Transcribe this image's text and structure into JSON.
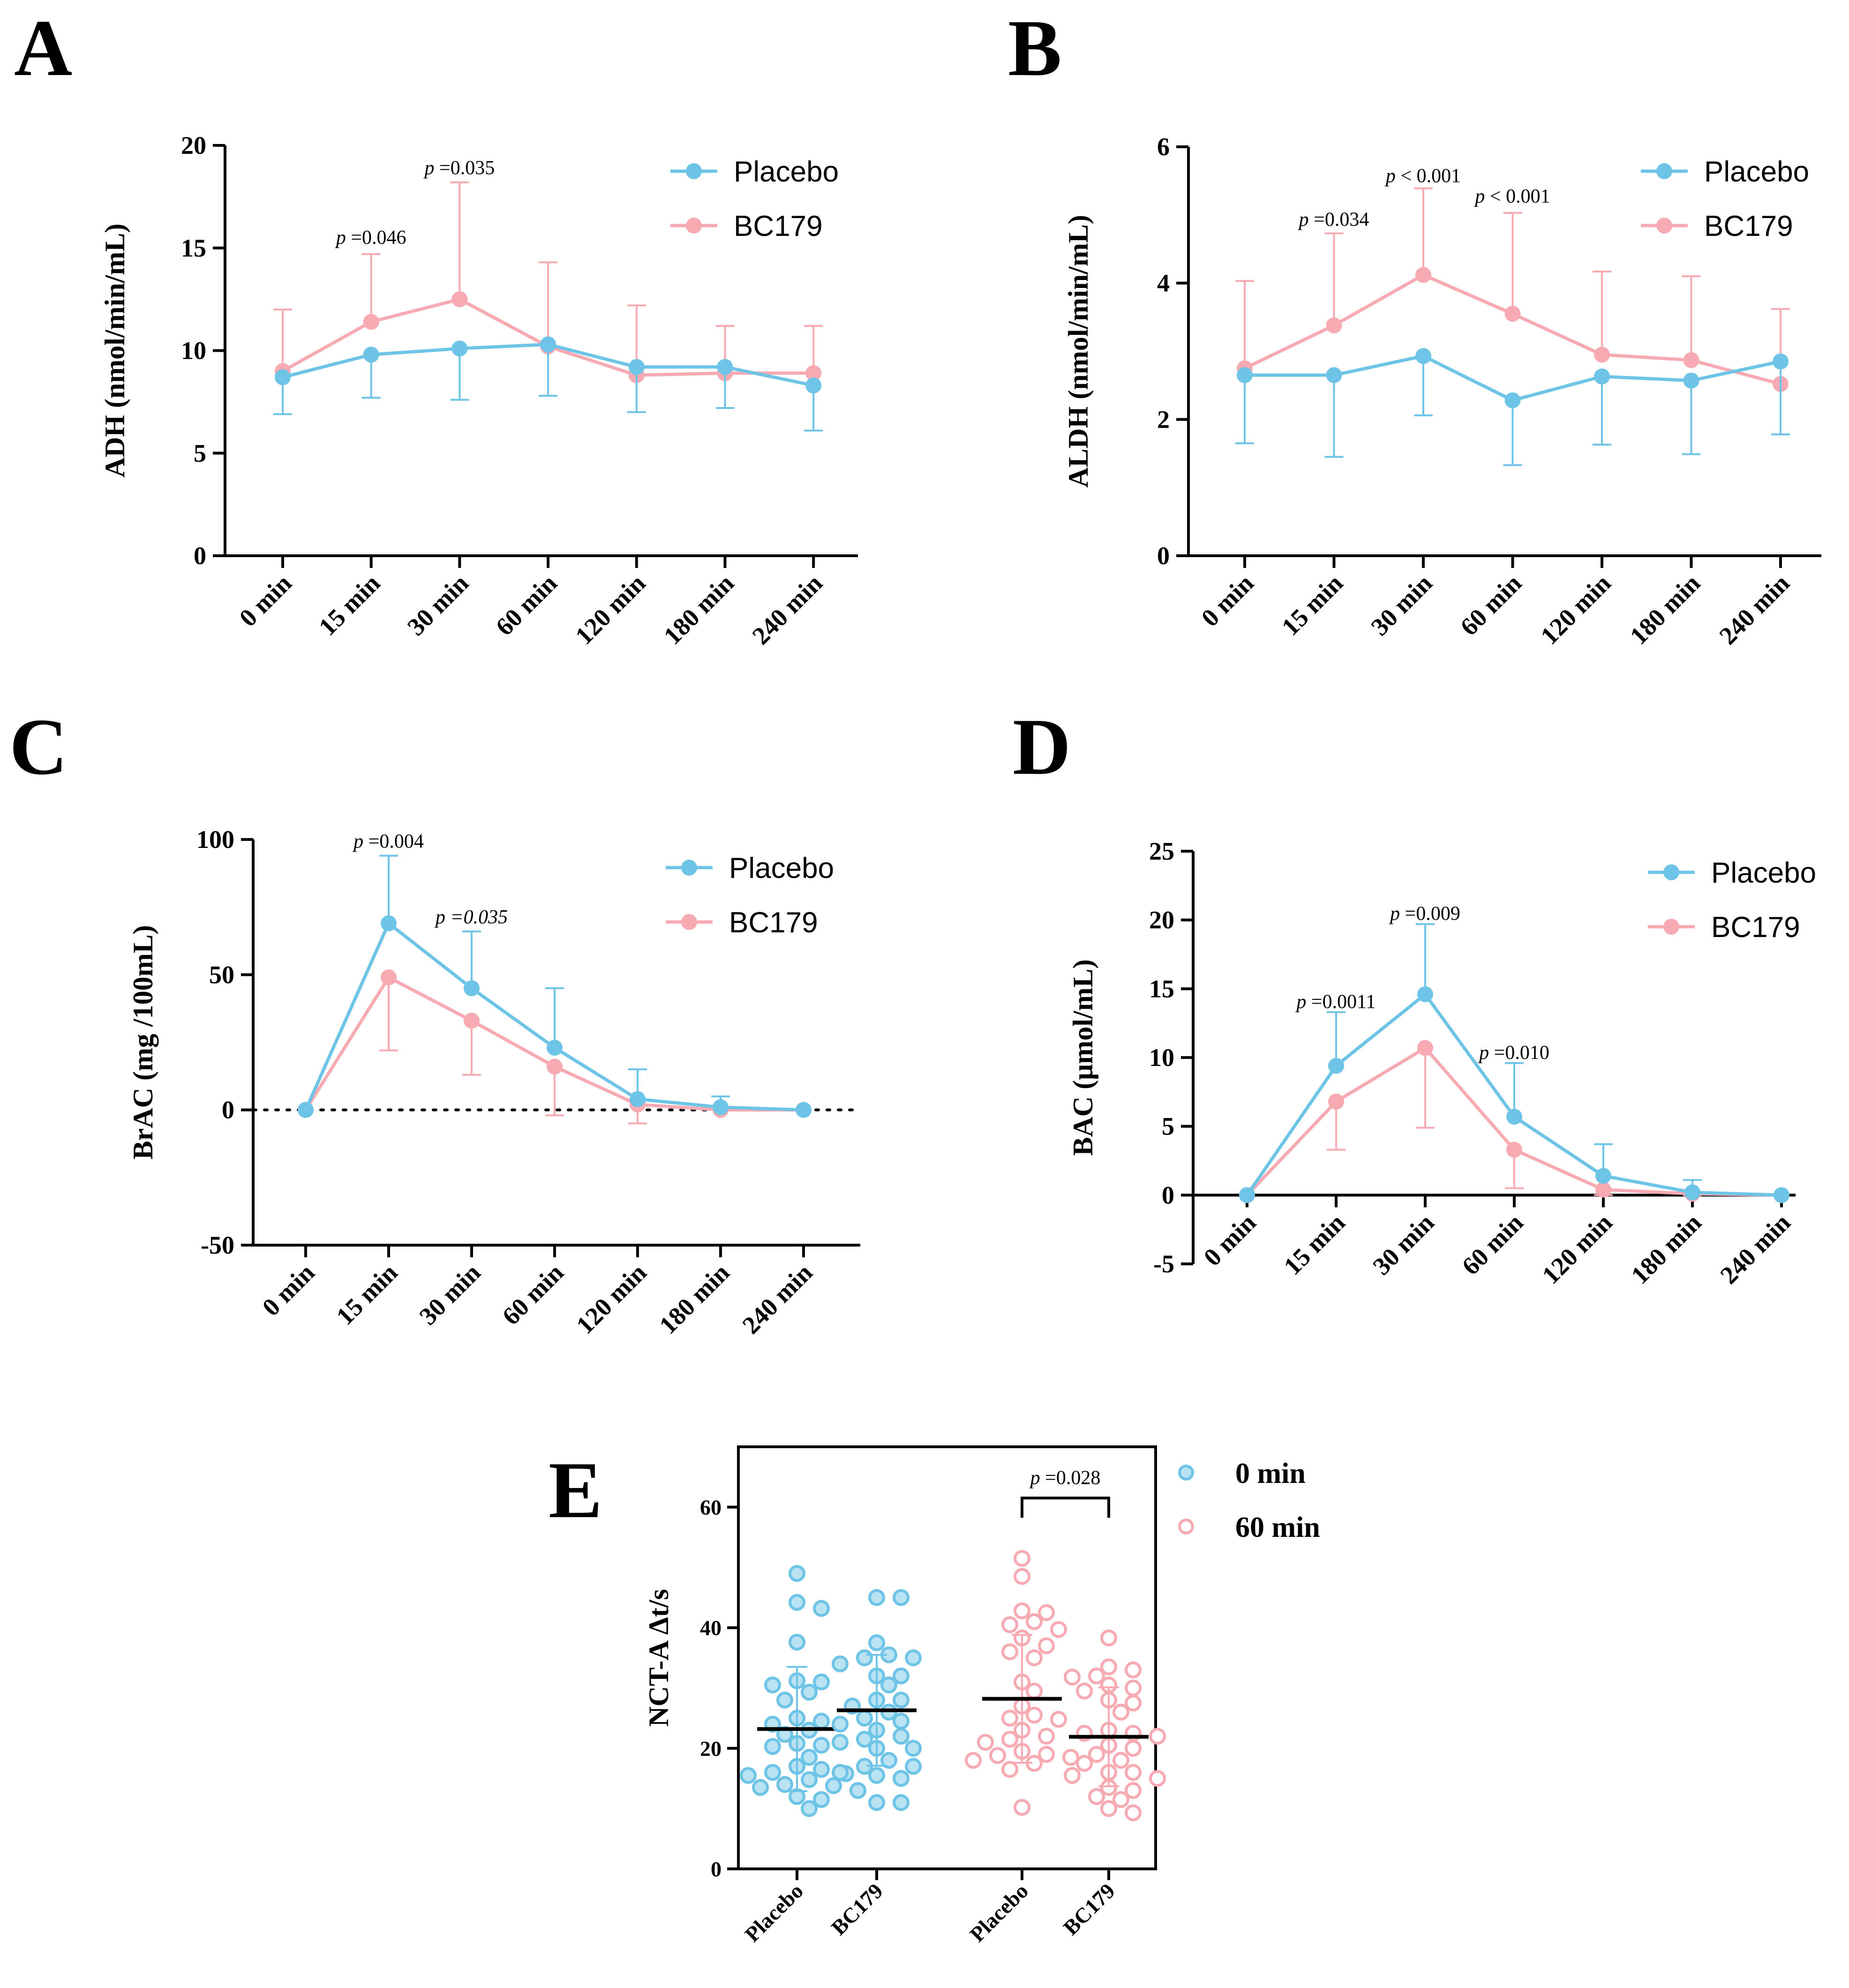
{
  "colors": {
    "placebo": "#6ec4e6",
    "bc179": "#f7aab1",
    "axis": "#000000"
  },
  "chart_data": [
    {
      "panel": "A",
      "type": "line",
      "ylabel": "ADH (nmol/min/mL)",
      "categories": [
        "0 min",
        "15 min",
        "30 min",
        "60 min",
        "120 min",
        "180 min",
        "240 min"
      ],
      "ylim": [
        0,
        20
      ],
      "yticks": [
        0,
        5,
        10,
        15,
        20
      ],
      "series": [
        {
          "name": "Placebo",
          "values": [
            8.7,
            9.8,
            10.1,
            10.3,
            9.2,
            9.2,
            8.3
          ],
          "err": [
            1.8,
            2.1,
            2.5,
            2.5,
            2.2,
            2.0,
            2.2
          ],
          "err_dir": "down"
        },
        {
          "name": "BC179",
          "values": [
            9.0,
            11.4,
            12.5,
            10.2,
            8.8,
            8.9,
            8.9
          ],
          "err": [
            3.0,
            3.3,
            5.7,
            4.1,
            3.4,
            2.3,
            2.3
          ],
          "err_dir": "up"
        }
      ],
      "annotations": [
        {
          "cat": 1,
          "y": 15.2,
          "p": "p",
          "text": "=0.046",
          "italic_value": false
        },
        {
          "cat": 2,
          "y": 18.6,
          "p": "p",
          "text": "=0.035",
          "italic_value": false
        }
      ],
      "legend": [
        "Placebo",
        "BC179"
      ]
    },
    {
      "panel": "B",
      "type": "line",
      "ylabel": "ALDH (nmol/min/mL)",
      "categories": [
        "0 min",
        "15 min",
        "30 min",
        "60 min",
        "120 min",
        "180 min",
        "240 min"
      ],
      "ylim": [
        0,
        6
      ],
      "yticks": [
        0,
        2,
        4,
        6
      ],
      "series": [
        {
          "name": "Placebo",
          "values": [
            2.65,
            2.65,
            2.93,
            2.28,
            2.63,
            2.57,
            2.85
          ],
          "err": [
            1.0,
            1.2,
            0.87,
            0.95,
            1.0,
            1.08,
            1.07
          ],
          "err_dir": "down"
        },
        {
          "name": "BC179",
          "values": [
            2.75,
            3.38,
            4.12,
            3.55,
            2.95,
            2.87,
            2.52
          ],
          "err": [
            1.28,
            1.35,
            1.27,
            1.48,
            1.22,
            1.23,
            1.1
          ],
          "err_dir": "up"
        }
      ],
      "annotations": [
        {
          "cat": 1,
          "y": 4.84,
          "p": "p",
          "text": "=0.034",
          "italic_value": false
        },
        {
          "cat": 2,
          "y": 5.48,
          "p": "p",
          "text": "< 0.001",
          "italic_value": false
        },
        {
          "cat": 3,
          "y": 5.18,
          "p": "p",
          "text": "< 0.001",
          "italic_value": false
        }
      ],
      "legend": [
        "Placebo",
        "BC179"
      ]
    },
    {
      "panel": "C",
      "type": "line",
      "ylabel": "BrAC (mg /100mL)",
      "categories": [
        "0 min",
        "15 min",
        "30 min",
        "60 min",
        "120 min",
        "180 min",
        "240 min"
      ],
      "ylim": [
        -50,
        100
      ],
      "yticks": [
        -50,
        0,
        50,
        100
      ],
      "zero_line": "dotted",
      "series": [
        {
          "name": "Placebo",
          "values": [
            0,
            69,
            45,
            23,
            4,
            1,
            0
          ],
          "err": [
            0,
            25,
            21,
            22,
            11,
            4,
            0
          ],
          "err_dir": "up"
        },
        {
          "name": "BC179",
          "values": [
            0,
            49,
            33,
            16,
            2,
            0,
            0
          ],
          "err": [
            0,
            27,
            20,
            18,
            7,
            0,
            0
          ],
          "err_dir": "down"
        }
      ],
      "annotations": [
        {
          "cat": 1,
          "y": 97,
          "p": "p",
          "text": "=0.004",
          "italic_value": false
        },
        {
          "cat": 2,
          "y": 69,
          "p": "p",
          "text": "=0.035",
          "italic_value": true
        }
      ],
      "legend": [
        "Placebo",
        "BC179"
      ]
    },
    {
      "panel": "D",
      "type": "line",
      "ylabel": "BAC (μmol/mL)",
      "categories": [
        "0 min",
        "15 min",
        "30 min",
        "60 min",
        "120 min",
        "180 min",
        "240 min"
      ],
      "ylim": [
        -5,
        25
      ],
      "yticks": [
        -5,
        0,
        5,
        10,
        15,
        20,
        25
      ],
      "zero_line": "solid",
      "series": [
        {
          "name": "Placebo",
          "values": [
            0,
            9.4,
            14.6,
            5.7,
            1.4,
            0.2,
            0
          ],
          "err": [
            0,
            3.9,
            5.1,
            3.9,
            2.3,
            0.9,
            0
          ],
          "err_dir": "up"
        },
        {
          "name": "BC179",
          "values": [
            0,
            6.8,
            10.7,
            3.3,
            0.4,
            0.1,
            0
          ],
          "err": [
            0,
            3.5,
            5.8,
            2.8,
            0.4,
            0.1,
            0
          ],
          "err_dir": "down"
        }
      ],
      "annotations": [
        {
          "cat": 1,
          "y": 13.6,
          "p": "p",
          "text": "=0.0011",
          "italic_value": false
        },
        {
          "cat": 2,
          "y": 20.0,
          "p": "p",
          "text": "=0.009",
          "italic_value": false
        },
        {
          "cat": 3,
          "y": 9.9,
          "p": "p",
          "text": "=0.010",
          "italic_value": false
        }
      ],
      "legend": [
        "Placebo",
        "BC179"
      ]
    },
    {
      "panel": "E",
      "type": "scatter",
      "ylabel": "NCT-A Δt/s",
      "ylim": [
        0,
        70
      ],
      "yticks": [
        0,
        20,
        40,
        60
      ],
      "categories": [
        "Placebo",
        "BC179",
        "Placebo",
        "BC179"
      ],
      "groups": [
        {
          "label": "Placebo",
          "time": "0 min",
          "mean": 23.2,
          "sd": 10.3,
          "values": [
            49.0,
            44.2,
            43.2,
            37.6,
            31.2,
            31.0,
            30.5,
            29.3,
            28.0,
            25.0,
            24.5,
            24.0,
            23.0,
            22.3,
            20.8,
            20.5,
            20.3,
            18.5,
            17.0,
            16.5,
            16.0,
            15.8,
            15.5,
            14.8,
            14.0,
            13.8,
            13.5,
            13.0,
            12.0,
            11.5,
            10.0
          ]
        },
        {
          "label": "BC179",
          "time": "0 min",
          "mean": 26.3,
          "sd": 9.2,
          "values": [
            45.0,
            45.0,
            37.5,
            35.5,
            35.0,
            35.0,
            34.0,
            32.0,
            32.0,
            30.5,
            28.0,
            28.0,
            27.0,
            26.0,
            25.0,
            24.5,
            24.0,
            23.0,
            22.0,
            21.5,
            21.0,
            20.0,
            20.0,
            18.0,
            17.0,
            17.0,
            16.0,
            15.5,
            15.0,
            11.0,
            11.0
          ]
        },
        {
          "label": "Placebo",
          "time": "60 min",
          "mean": 28.2,
          "sd": 10.6,
          "values": [
            51.5,
            48.5,
            42.8,
            42.5,
            41.0,
            40.5,
            39.7,
            38.3,
            37.0,
            36.0,
            35.0,
            31.0,
            29.5,
            27.0,
            25.5,
            25.0,
            24.8,
            23.0,
            22.0,
            21.5,
            21.0,
            19.5,
            19.0,
            18.8,
            18.5,
            18.0,
            17.5,
            16.5,
            10.2
          ]
        },
        {
          "label": "BC179",
          "time": "60 min",
          "mean": 21.9,
          "sd": 8.2,
          "values": [
            38.3,
            33.5,
            33.0,
            32.0,
            31.8,
            30.5,
            30.0,
            29.5,
            28.0,
            27.5,
            26.0,
            23.0,
            22.5,
            22.5,
            22.0,
            20.5,
            20.0,
            19.0,
            18.0,
            17.5,
            16.0,
            16.0,
            15.5,
            15.0,
            13.5,
            13.0,
            12.0,
            11.5,
            10.0,
            9.3
          ]
        }
      ],
      "comparison": {
        "from": 2,
        "to": 3,
        "y": 61.5,
        "p": "p",
        "text": "=0.028"
      },
      "legend": [
        "0 min",
        "60 min"
      ]
    }
  ]
}
